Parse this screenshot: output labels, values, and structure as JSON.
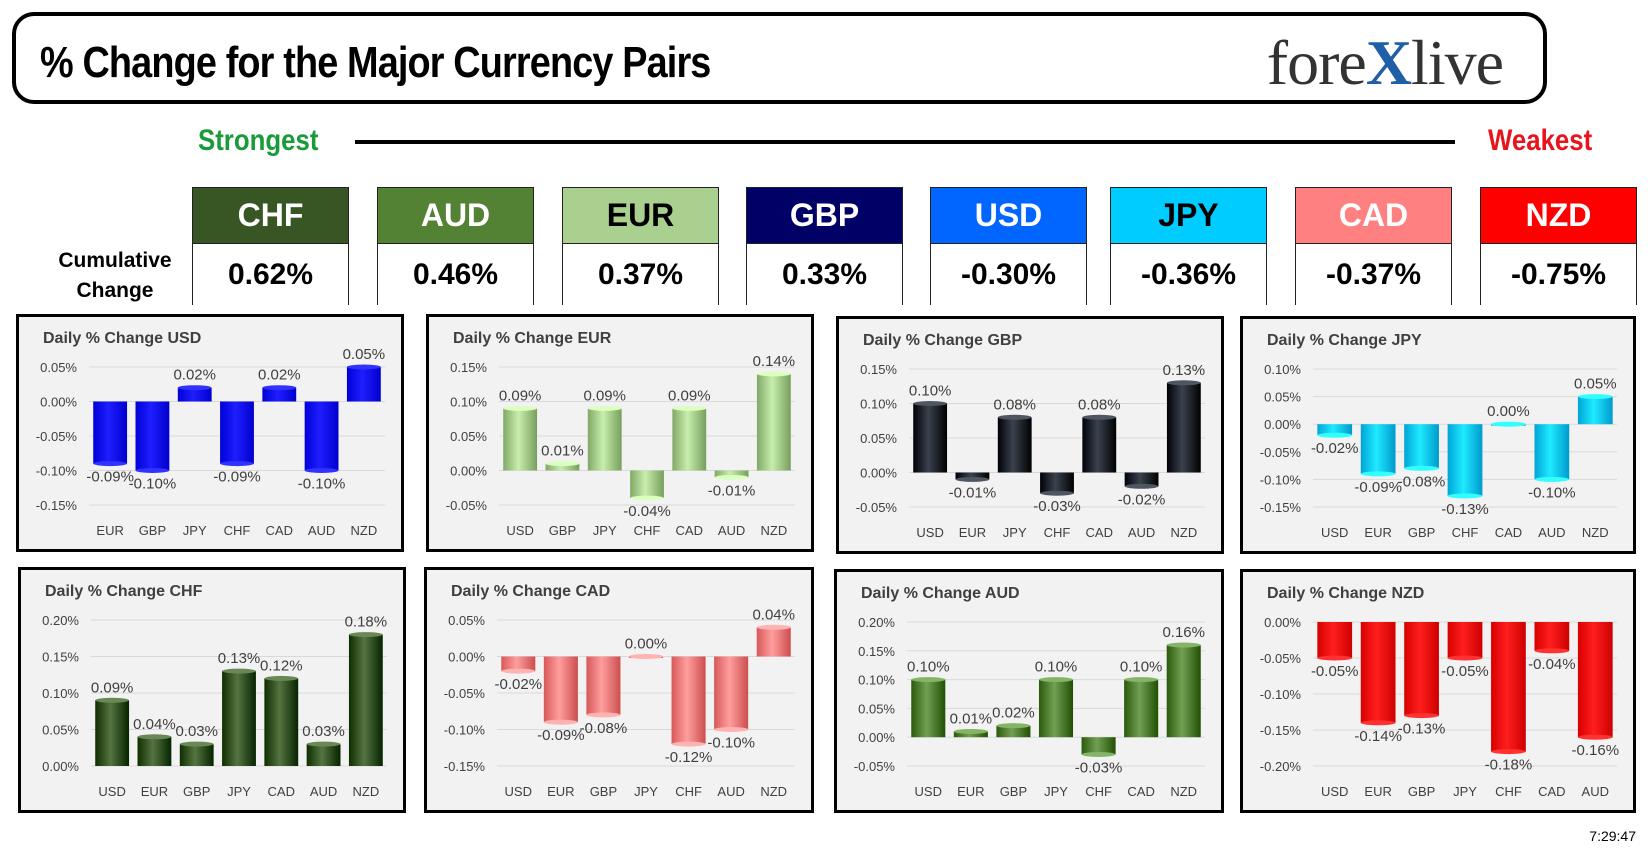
{
  "header": {
    "title": "% Change for the Major Currency Pairs",
    "logo_left": "fore",
    "logo_x": "X",
    "logo_right": "live"
  },
  "strength": {
    "strongest": "Strongest",
    "weakest": "Weakest",
    "cumulative_label_line1": "Cumulative",
    "cumulative_label_line2": "Change"
  },
  "currencies": [
    {
      "code": "CHF",
      "value": "0.62%",
      "bg": "#375623",
      "fg": "#ffffff"
    },
    {
      "code": "AUD",
      "value": "0.46%",
      "bg": "#548235",
      "fg": "#ffffff"
    },
    {
      "code": "EUR",
      "value": "0.37%",
      "bg": "#a9d08e",
      "fg": "#000000"
    },
    {
      "code": "GBP",
      "value": "0.33%",
      "bg": "#000066",
      "fg": "#ffffff"
    },
    {
      "code": "USD",
      "value": "-0.30%",
      "bg": "#0066ff",
      "fg": "#ffffff"
    },
    {
      "code": "JPY",
      "value": "-0.36%",
      "bg": "#00ccff",
      "fg": "#000000"
    },
    {
      "code": "CAD",
      "value": "-0.37%",
      "bg": "#ff8080",
      "fg": "#ffffff"
    },
    {
      "code": "NZD",
      "value": "-0.75%",
      "bg": "#ff0000",
      "fg": "#ffffff"
    }
  ],
  "timestamp": "7:29:47",
  "chart_data": [
    {
      "type": "bar",
      "title": "Daily % Change USD",
      "color": "#0000ff",
      "categories": [
        "EUR",
        "GBP",
        "JPY",
        "CHF",
        "CAD",
        "AUD",
        "NZD"
      ],
      "values": [
        -0.09,
        -0.1,
        0.02,
        -0.09,
        0.02,
        -0.1,
        0.05
      ],
      "labels": [
        "-0.09%",
        "-0.10%",
        "0.02%",
        "-0.09%",
        "0.02%",
        "-0.10%",
        "0.05%"
      ],
      "ylim": [
        -0.15,
        0.05
      ],
      "yticks": [
        "0.05%",
        "0.00%",
        "-0.05%",
        "-0.10%",
        "-0.15%"
      ],
      "tickvals": [
        0.05,
        0,
        -0.05,
        -0.1,
        -0.15
      ]
    },
    {
      "type": "bar",
      "title": "Daily % Change EUR",
      "color": "#a9d08e",
      "categories": [
        "USD",
        "GBP",
        "JPY",
        "CHF",
        "CAD",
        "AUD",
        "NZD"
      ],
      "values": [
        0.09,
        0.01,
        0.09,
        -0.04,
        0.09,
        -0.01,
        0.14
      ],
      "labels": [
        "0.09%",
        "0.01%",
        "0.09%",
        "-0.04%",
        "0.09%",
        "-0.01%",
        "0.14%"
      ],
      "ylim": [
        -0.05,
        0.15
      ],
      "yticks": [
        "0.15%",
        "0.10%",
        "0.05%",
        "0.00%",
        "-0.05%"
      ],
      "tickvals": [
        0.15,
        0.1,
        0.05,
        0,
        -0.05
      ]
    },
    {
      "type": "bar",
      "title": "Daily % Change GBP",
      "color": "#1c2430",
      "categories": [
        "USD",
        "EUR",
        "JPY",
        "CHF",
        "CAD",
        "AUD",
        "NZD"
      ],
      "values": [
        0.1,
        -0.01,
        0.08,
        -0.03,
        0.08,
        -0.02,
        0.13
      ],
      "labels": [
        "0.10%",
        "-0.01%",
        "0.08%",
        "-0.03%",
        "0.08%",
        "-0.02%",
        "0.13%"
      ],
      "ylim": [
        -0.05,
        0.15
      ],
      "yticks": [
        "0.15%",
        "0.10%",
        "0.05%",
        "0.00%",
        "-0.05%"
      ],
      "tickvals": [
        0.15,
        0.1,
        0.05,
        0,
        -0.05
      ]
    },
    {
      "type": "bar",
      "title": "Daily % Change JPY",
      "color": "#00ccff",
      "categories": [
        "USD",
        "EUR",
        "GBP",
        "CHF",
        "CAD",
        "AUD",
        "NZD"
      ],
      "values": [
        -0.02,
        -0.09,
        -0.08,
        -0.13,
        0.0,
        -0.1,
        0.05
      ],
      "labels": [
        "-0.02%",
        "-0.09%",
        "-0.08%",
        "-0.13%",
        "0.00%",
        "-0.10%",
        "0.05%"
      ],
      "ylim": [
        -0.15,
        0.1
      ],
      "yticks": [
        "0.10%",
        "0.05%",
        "0.00%",
        "-0.05%",
        "-0.10%",
        "-0.15%"
      ],
      "tickvals": [
        0.1,
        0.05,
        0,
        -0.05,
        -0.1,
        -0.15
      ]
    },
    {
      "type": "bar",
      "title": "Daily % Change CHF",
      "color": "#375623",
      "categories": [
        "USD",
        "EUR",
        "GBP",
        "JPY",
        "CAD",
        "AUD",
        "NZD"
      ],
      "values": [
        0.09,
        0.04,
        0.03,
        0.13,
        0.12,
        0.03,
        0.18
      ],
      "labels": [
        "0.09%",
        "0.04%",
        "0.03%",
        "0.13%",
        "0.12%",
        "0.03%",
        "0.18%"
      ],
      "ylim": [
        0,
        0.2
      ],
      "yticks": [
        "0.20%",
        "0.15%",
        "0.10%",
        "0.05%",
        "0.00%"
      ],
      "tickvals": [
        0.2,
        0.15,
        0.1,
        0.05,
        0
      ]
    },
    {
      "type": "bar",
      "title": "Daily % Change CAD",
      "color": "#ff8080",
      "categories": [
        "USD",
        "EUR",
        "GBP",
        "JPY",
        "CHF",
        "AUD",
        "NZD"
      ],
      "values": [
        -0.02,
        -0.09,
        -0.08,
        0.0,
        -0.12,
        -0.1,
        0.04
      ],
      "labels": [
        "-0.02%",
        "-0.09%",
        "-0.08%",
        "0.00%",
        "-0.12%",
        "-0.10%",
        "0.04%"
      ],
      "ylim": [
        -0.15,
        0.05
      ],
      "yticks": [
        "0.05%",
        "0.00%",
        "-0.05%",
        "-0.10%",
        "-0.15%"
      ],
      "tickvals": [
        0.05,
        0,
        -0.05,
        -0.1,
        -0.15
      ]
    },
    {
      "type": "bar",
      "title": "Daily % Change AUD",
      "color": "#548235",
      "categories": [
        "USD",
        "EUR",
        "GBP",
        "JPY",
        "CHF",
        "CAD",
        "NZD"
      ],
      "values": [
        0.1,
        0.01,
        0.02,
        0.1,
        -0.03,
        0.1,
        0.16
      ],
      "labels": [
        "0.10%",
        "0.01%",
        "0.02%",
        "0.10%",
        "-0.03%",
        "0.10%",
        "0.16%"
      ],
      "ylim": [
        -0.05,
        0.2
      ],
      "yticks": [
        "0.20%",
        "0.15%",
        "0.10%",
        "0.05%",
        "0.00%",
        "-0.05%"
      ],
      "tickvals": [
        0.2,
        0.15,
        0.1,
        0.05,
        0,
        -0.05
      ]
    },
    {
      "type": "bar",
      "title": "Daily % Change NZD",
      "color": "#ff0000",
      "categories": [
        "USD",
        "EUR",
        "GBP",
        "JPY",
        "CHF",
        "CAD",
        "AUD"
      ],
      "values": [
        -0.05,
        -0.14,
        -0.13,
        -0.05,
        -0.18,
        -0.04,
        -0.16
      ],
      "labels": [
        "-0.05%",
        "-0.14%",
        "-0.13%",
        "-0.05%",
        "-0.18%",
        "-0.04%",
        "-0.16%"
      ],
      "ylim": [
        -0.2,
        0.0
      ],
      "yticks": [
        "0.00%",
        "-0.05%",
        "-0.10%",
        "-0.15%",
        "-0.20%"
      ],
      "tickvals": [
        0,
        -0.05,
        -0.1,
        -0.15,
        -0.2
      ]
    }
  ]
}
